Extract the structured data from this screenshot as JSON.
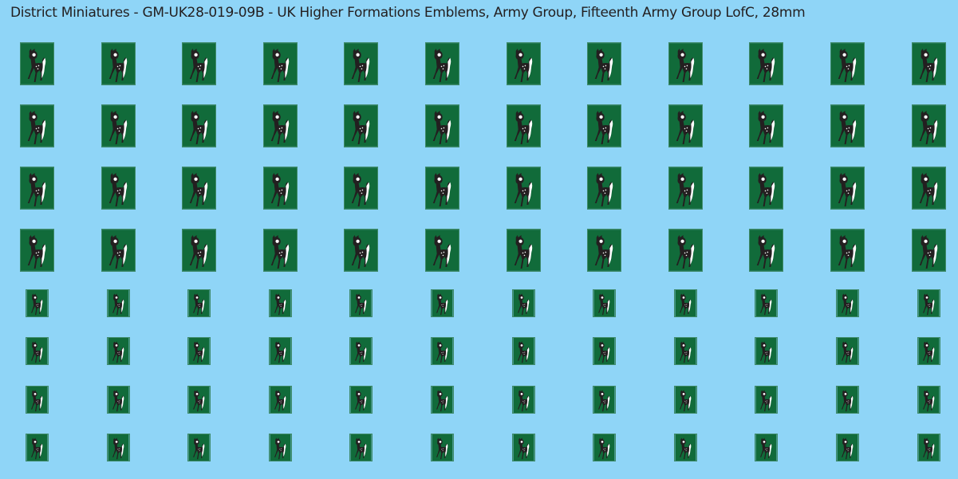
{
  "sheet": {
    "title": "District Miniatures - GM-UK28-019-09B - UK Higher Formations Emblems, Army Group, Fifteenth Army Group LofC, 28mm"
  },
  "colors": {
    "background": "#8fd5f7",
    "emblem_field": "#116b3a",
    "deer_dark": "#231f20",
    "deer_light": "#ffffff"
  },
  "emblem": {
    "icon": "fawn-deer-icon",
    "columns": 12,
    "large_rows": 4,
    "small_rows": 4
  }
}
